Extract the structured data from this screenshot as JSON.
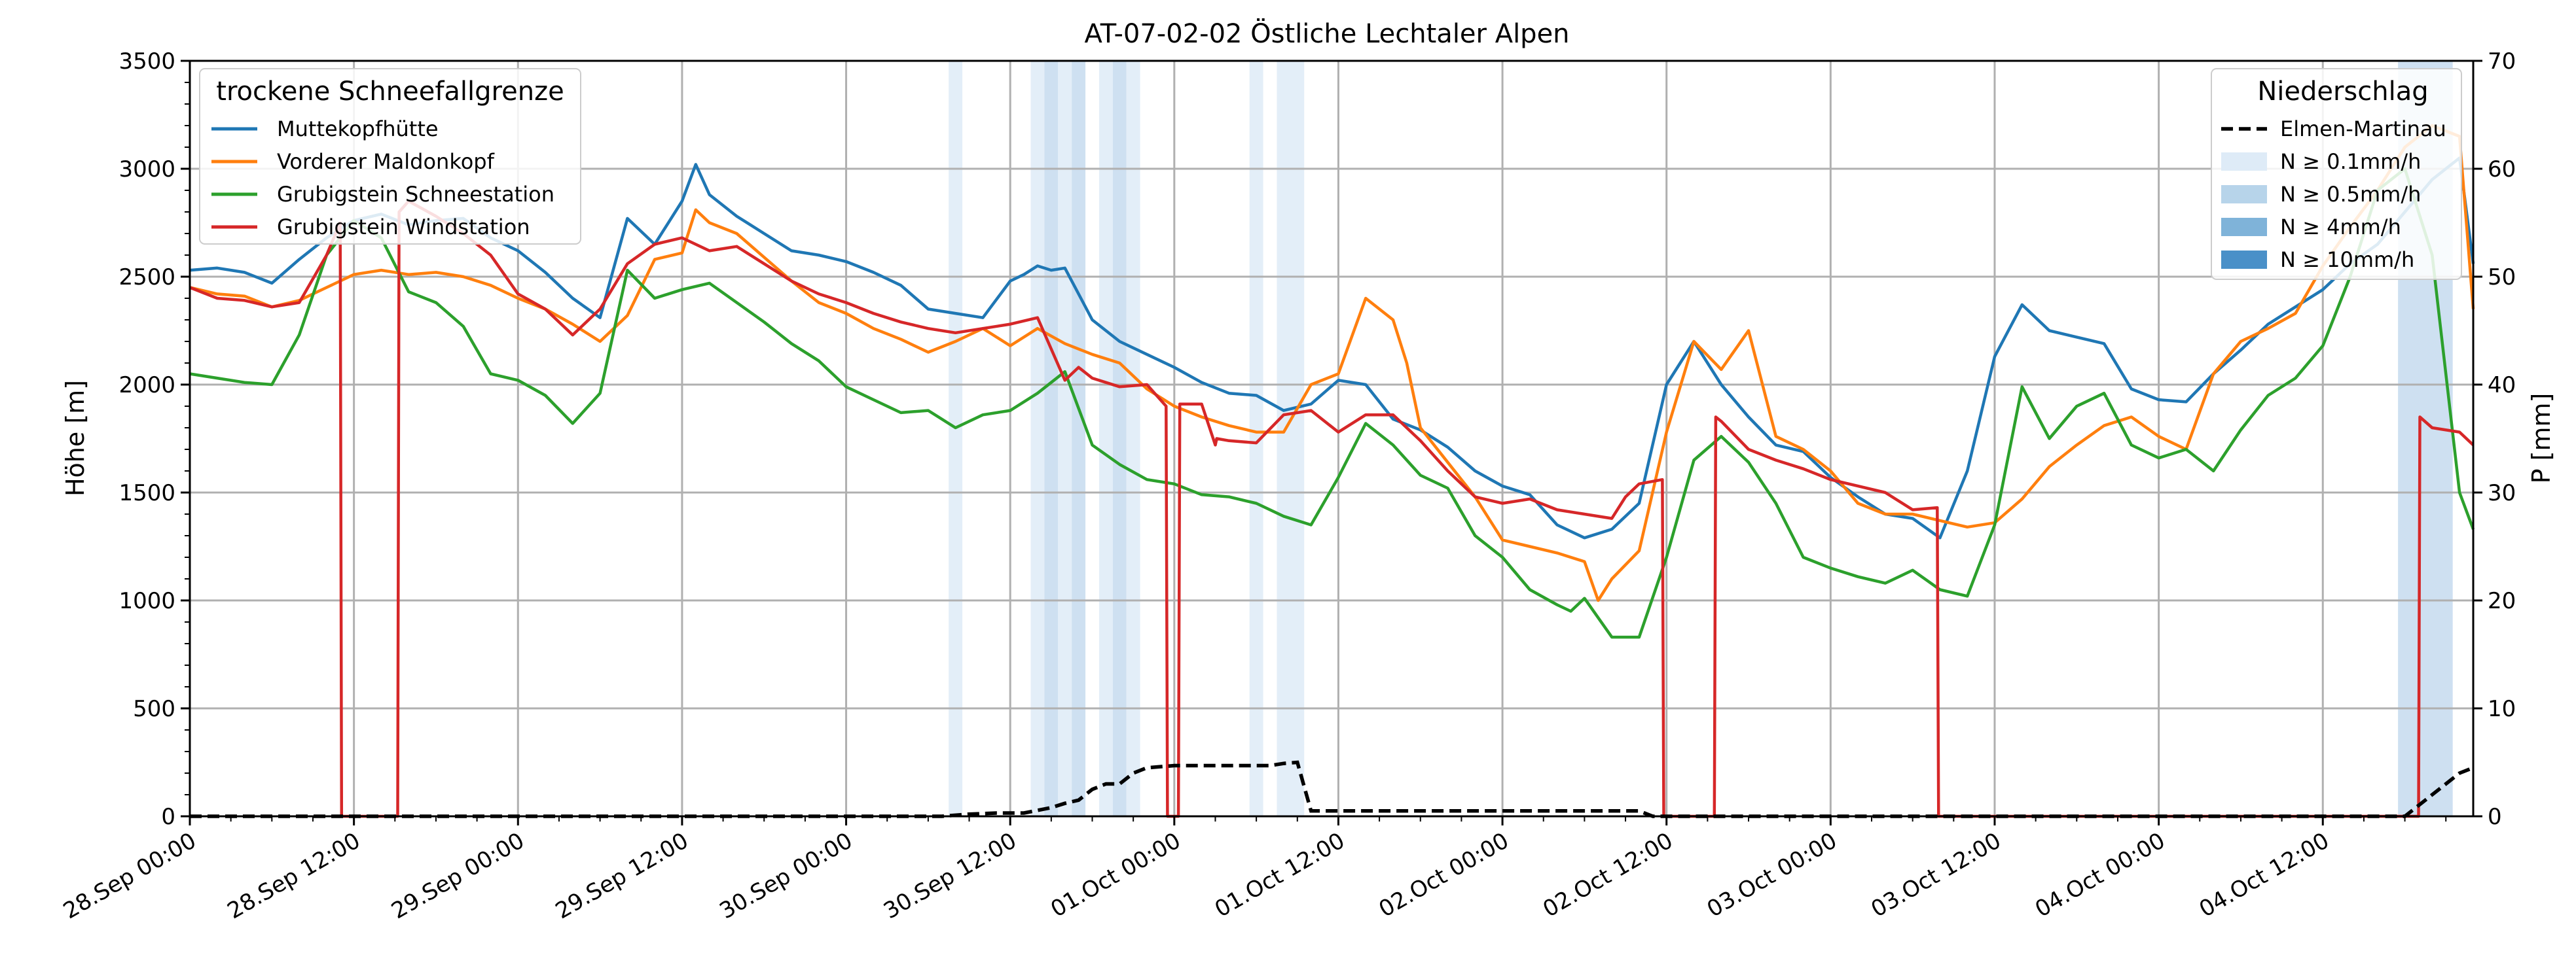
{
  "chart_data": {
    "type": "line",
    "title": "AT-07-02-02 Östliche Lechtaler Alpen",
    "xlabel": "",
    "ylabel": "Höhe [m]",
    "y2label": "P [mm]",
    "xlim": [
      0,
      167
    ],
    "ylim": [
      0,
      3500
    ],
    "y2lim": [
      0,
      70
    ],
    "grid": true,
    "x_ticks": [
      {
        "x": 0,
        "label": "28.Sep 00:00"
      },
      {
        "x": 12,
        "label": "28.Sep 12:00"
      },
      {
        "x": 24,
        "label": "29.Sep 00:00"
      },
      {
        "x": 36,
        "label": "29.Sep 12:00"
      },
      {
        "x": 48,
        "label": "30.Sep 00:00"
      },
      {
        "x": 60,
        "label": "30.Sep 12:00"
      },
      {
        "x": 72,
        "label": "01.Oct 00:00"
      },
      {
        "x": 84,
        "label": "01.Oct 12:00"
      },
      {
        "x": 96,
        "label": "02.Oct 00:00"
      },
      {
        "x": 108,
        "label": "02.Oct 12:00"
      },
      {
        "x": 120,
        "label": "03.Oct 00:00"
      },
      {
        "x": 132,
        "label": "03.Oct 12:00"
      },
      {
        "x": 144,
        "label": "04.Oct 00:00"
      },
      {
        "x": 156,
        "label": "04.Oct 12:00"
      }
    ],
    "y_ticks": [
      "0",
      "500",
      "1000",
      "1500",
      "2000",
      "2500",
      "3000",
      "3500"
    ],
    "y2_ticks": [
      "0",
      "10",
      "20",
      "30",
      "40",
      "50",
      "60",
      "70"
    ],
    "legend_left": {
      "title": "trockene Schneefallgrenze",
      "placement": "top-left"
    },
    "legend_right": {
      "title": "Niederschlag",
      "placement": "top-right",
      "entries": [
        {
          "label": "Elmen-Martinau",
          "kind": "dashed-line",
          "color": "#000000"
        },
        {
          "label": "N ≥ 0.1mm/h",
          "kind": "patch",
          "color": "#deebf7"
        },
        {
          "label": "N ≥ 0.5mm/h",
          "kind": "patch",
          "color": "#b7d4ea"
        },
        {
          "label": "N ≥ 4mm/h",
          "kind": "patch",
          "color": "#7fb3d9"
        },
        {
          "label": "N ≥ 10mm/h",
          "kind": "patch",
          "color": "#4a90c8"
        }
      ]
    },
    "precip_bands": [
      {
        "x0": 55.5,
        "x1": 56.5,
        "level": 1
      },
      {
        "x0": 61.5,
        "x1": 62.5,
        "level": 1
      },
      {
        "x0": 62.5,
        "x1": 63.5,
        "level": 2
      },
      {
        "x0": 63.5,
        "x1": 64.5,
        "level": 1
      },
      {
        "x0": 64.5,
        "x1": 65.5,
        "level": 2
      },
      {
        "x0": 66.5,
        "x1": 67.5,
        "level": 1
      },
      {
        "x0": 67.5,
        "x1": 68.5,
        "level": 2
      },
      {
        "x0": 68.5,
        "x1": 69.5,
        "level": 1
      },
      {
        "x0": 77.5,
        "x1": 78.5,
        "level": 1
      },
      {
        "x0": 79.5,
        "x1": 81.5,
        "level": 1
      },
      {
        "x0": 161.5,
        "x1": 165.5,
        "level": 2
      }
    ],
    "series": [
      {
        "name": "Muttekopfhütte",
        "color": "#1f77b4",
        "x": [
          0,
          2,
          4,
          6,
          8,
          10,
          12,
          14,
          16,
          18,
          20,
          22,
          24,
          26,
          28,
          30,
          32,
          34,
          36,
          37,
          38,
          40,
          42,
          44,
          46,
          48,
          50,
          52,
          54,
          56,
          58,
          60,
          61,
          62,
          63,
          64,
          66,
          68,
          70,
          72,
          74,
          76,
          78,
          80,
          82,
          84,
          86,
          88,
          90,
          92,
          94,
          96,
          98,
          100,
          102,
          104,
          106,
          108,
          110,
          112,
          114,
          116,
          118,
          120,
          122,
          124,
          126,
          128,
          130,
          132,
          134,
          136,
          138,
          140,
          142,
          144,
          146,
          148,
          150,
          152,
          154,
          156,
          158,
          160,
          162,
          164,
          166,
          167
        ],
        "values": [
          2530,
          2540,
          2520,
          2470,
          2580,
          2680,
          2760,
          2790,
          2740,
          2760,
          2770,
          2680,
          2620,
          2520,
          2400,
          2310,
          2770,
          2650,
          2850,
          3020,
          2880,
          2780,
          2700,
          2620,
          2600,
          2570,
          2520,
          2460,
          2350,
          2330,
          2310,
          2480,
          2510,
          2550,
          2530,
          2540,
          2300,
          2200,
          2140,
          2080,
          2010,
          1960,
          1950,
          1880,
          1910,
          2020,
          2000,
          1840,
          1790,
          1710,
          1600,
          1530,
          1490,
          1350,
          1290,
          1330,
          1450,
          2000,
          2200,
          2000,
          1850,
          1720,
          1690,
          1570,
          1480,
          1400,
          1380,
          1290,
          1600,
          2130,
          2370,
          2250,
          2220,
          2190,
          1980,
          1930,
          1920,
          2050,
          2160,
          2280,
          2360,
          2440,
          2560,
          2650,
          2800,
          2950,
          3050,
          2560
        ]
      },
      {
        "name": "Vorderer Maldonkopf",
        "color": "#ff7f0e",
        "x": [
          0,
          2,
          4,
          6,
          8,
          10,
          12,
          14,
          16,
          18,
          20,
          22,
          24,
          26,
          28,
          30,
          32,
          34,
          36,
          37,
          38,
          40,
          42,
          44,
          46,
          48,
          50,
          52,
          54,
          56,
          58,
          60,
          62,
          64,
          66,
          68,
          70,
          72,
          74,
          76,
          78,
          80,
          82,
          84,
          86,
          88,
          89,
          90,
          92,
          94,
          96,
          98,
          100,
          102,
          103,
          104,
          106,
          108,
          110,
          112,
          114,
          116,
          118,
          120,
          122,
          124,
          126,
          128,
          130,
          132,
          134,
          136,
          138,
          140,
          142,
          144,
          146,
          148,
          150,
          152,
          154,
          156,
          158,
          160,
          162,
          164,
          166,
          167
        ],
        "values": [
          2450,
          2420,
          2410,
          2360,
          2390,
          2450,
          2510,
          2530,
          2510,
          2520,
          2500,
          2460,
          2400,
          2350,
          2280,
          2200,
          2320,
          2580,
          2610,
          2810,
          2750,
          2700,
          2590,
          2480,
          2380,
          2330,
          2260,
          2210,
          2150,
          2200,
          2260,
          2180,
          2260,
          2190,
          2140,
          2100,
          1980,
          1900,
          1850,
          1810,
          1780,
          1780,
          2000,
          2050,
          2400,
          2300,
          2100,
          1800,
          1640,
          1480,
          1280,
          1250,
          1220,
          1180,
          1000,
          1100,
          1230,
          1780,
          2200,
          2070,
          2250,
          1760,
          1700,
          1600,
          1450,
          1400,
          1400,
          1370,
          1340,
          1360,
          1470,
          1620,
          1720,
          1810,
          1850,
          1760,
          1700,
          2050,
          2200,
          2260,
          2330,
          2550,
          2730,
          2900,
          3100,
          3200,
          3150,
          2350
        ]
      },
      {
        "name": "Grubigstein Schneestation",
        "color": "#2ca02c",
        "x": [
          0,
          2,
          4,
          6,
          8,
          10,
          12,
          14,
          16,
          18,
          20,
          22,
          24,
          26,
          28,
          30,
          32,
          34,
          36,
          38,
          40,
          42,
          44,
          46,
          48,
          50,
          52,
          54,
          56,
          58,
          60,
          62,
          64,
          66,
          68,
          70,
          72,
          74,
          76,
          78,
          80,
          82,
          84,
          86,
          88,
          90,
          92,
          94,
          96,
          98,
          100,
          101,
          102,
          104,
          106,
          108,
          110,
          112,
          114,
          116,
          118,
          120,
          122,
          124,
          126,
          128,
          130,
          132,
          134,
          136,
          138,
          140,
          142,
          144,
          146,
          148,
          150,
          152,
          154,
          156,
          158,
          160,
          162,
          164,
          166,
          167
        ],
        "values": [
          2050,
          2030,
          2010,
          2000,
          2230,
          2600,
          2760,
          2680,
          2430,
          2380,
          2270,
          2050,
          2020,
          1950,
          1820,
          1960,
          2530,
          2400,
          2440,
          2470,
          2380,
          2290,
          2190,
          2110,
          1990,
          1930,
          1870,
          1880,
          1800,
          1860,
          1880,
          1960,
          2060,
          1720,
          1630,
          1560,
          1540,
          1490,
          1480,
          1450,
          1390,
          1350,
          1570,
          1820,
          1720,
          1580,
          1520,
          1300,
          1200,
          1050,
          980,
          950,
          1010,
          830,
          830,
          1200,
          1650,
          1760,
          1640,
          1450,
          1200,
          1150,
          1110,
          1080,
          1140,
          1050,
          1020,
          1350,
          1990,
          1750,
          1900,
          1960,
          1720,
          1660,
          1700,
          1600,
          1790,
          1950,
          2030,
          2180,
          2500,
          2900,
          3000,
          2600,
          1500,
          1330
        ]
      },
      {
        "name": "Grubigstein Windstation",
        "color": "#d62728",
        "x": [
          0,
          2,
          4,
          6,
          8,
          10,
          11,
          11.1,
          15.2,
          15.3,
          16,
          18,
          20,
          22,
          24,
          26,
          28,
          30,
          32,
          34,
          36,
          38,
          40,
          42,
          44,
          46,
          48,
          50,
          52,
          54,
          56,
          58,
          60,
          62,
          64,
          65,
          66,
          68,
          70,
          71.4,
          71.5,
          72.3,
          72.4,
          74,
          75,
          75.1,
          76,
          78,
          80,
          82,
          84,
          86,
          88,
          90,
          92,
          94,
          96,
          98,
          100,
          102,
          104,
          105,
          106,
          107.7,
          107.8,
          111.5,
          111.6,
          112,
          114,
          116,
          118,
          120,
          122,
          124,
          126,
          127.8,
          127.9,
          128,
          130,
          132,
          134,
          136,
          138,
          140,
          142,
          144,
          146,
          148,
          150,
          152,
          154,
          156,
          158,
          160,
          162,
          163,
          163.1,
          164,
          166,
          167
        ],
        "values": [
          2450,
          2400,
          2390,
          2360,
          2380,
          2600,
          2750,
          0,
          0,
          2800,
          2850,
          2780,
          2700,
          2600,
          2420,
          2350,
          2230,
          2350,
          2560,
          2650,
          2680,
          2620,
          2640,
          2560,
          2480,
          2420,
          2380,
          2330,
          2290,
          2260,
          2240,
          2260,
          2280,
          2310,
          2020,
          2080,
          2030,
          1990,
          2000,
          1900,
          0,
          0,
          1910,
          1910,
          1720,
          1750,
          1740,
          1730,
          1860,
          1880,
          1780,
          1860,
          1860,
          1740,
          1600,
          1480,
          1450,
          1470,
          1420,
          1400,
          1380,
          1480,
          1540,
          1560,
          0,
          0,
          1850,
          1830,
          1700,
          1650,
          1610,
          1560,
          1530,
          1500,
          1420,
          1430,
          0,
          0,
          0,
          0,
          0,
          0,
          0,
          0,
          0,
          0,
          0,
          0,
          0,
          0,
          0,
          0,
          0,
          0,
          0,
          0,
          1850,
          1800,
          1780,
          1720
        ]
      }
    ],
    "precip_series": {
      "name": "Elmen-Martinau",
      "color": "#000000",
      "x": [
        0,
        10,
        20,
        30,
        40,
        50,
        55,
        57,
        59,
        61,
        63,
        64,
        65,
        66,
        67,
        68,
        69,
        70,
        72,
        74,
        76,
        78,
        79,
        80,
        81,
        82,
        84,
        88,
        92,
        96,
        100,
        104,
        105,
        106,
        107,
        108,
        110,
        120,
        130,
        140,
        150,
        155,
        158,
        160,
        162,
        164,
        166,
        167
      ],
      "values": [
        0,
        0,
        0,
        0,
        0,
        0,
        0,
        0.2,
        0.3,
        0.3,
        0.8,
        1.2,
        1.5,
        2.5,
        3.0,
        3.0,
        4.0,
        4.5,
        4.7,
        4.7,
        4.7,
        4.7,
        4.7,
        4.9,
        5.0,
        0.5,
        0.5,
        0.5,
        0.5,
        0.5,
        0.5,
        0.5,
        0.5,
        0.5,
        0,
        0,
        0,
        0,
        0,
        0,
        0,
        0,
        0,
        0,
        0,
        2.0,
        4.0,
        4.5
      ]
    }
  }
}
